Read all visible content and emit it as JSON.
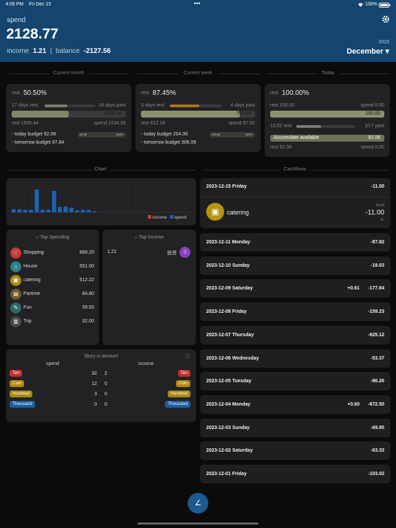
{
  "status_bar": {
    "time": "4:08 PM",
    "date": "Fri Dec 15",
    "dots": "•••",
    "battery": "100%"
  },
  "header": {
    "label": "spend",
    "amount": "2128.77",
    "income_label": "income",
    "income_value": "1.21",
    "sep": "|",
    "balance_label": "balance",
    "balance_value": "-2127.56",
    "year": "2023",
    "month": "December ▾",
    "settings_icon": "gear-icon"
  },
  "sections": {
    "month": "Current month",
    "week": "Current week",
    "today": "Today",
    "chart": "Chart",
    "cashflows": "Cashflows"
  },
  "month_card": {
    "rest_label": "rest",
    "rest_pct": "50.50%",
    "days_rest": "17 days rest",
    "days_past": "14 days past",
    "bar_value": "3100.00",
    "bar_fill": 0.5,
    "days_fill": 0.45,
    "rest_amount": "rest 1565.44",
    "spend_amount": "spend 1534.56",
    "today_budget": "- today budget 92.08",
    "tomorrow_budget": "- tomorrow budget 97.84",
    "pill_left": "92.08",
    "pill_right": "100%"
  },
  "week_card": {
    "rest_label": "rest",
    "rest_pct": "87.45%",
    "days_rest": "3 days rest",
    "days_past": "4 days past",
    "bar_value": "700.00",
    "bar_fill": 0.87,
    "days_fill": 0.57,
    "rest_amount": "rest 612.18",
    "spend_amount": "spend 87.82",
    "today_budget": "- today budget 204.06",
    "tomorrow_budget": "- tomorrow budget 306.09",
    "pill_left": "204.06",
    "pill_right": "100%"
  },
  "today_card": {
    "rest_label": "rest",
    "rest_pct": "100.00%",
    "rest_amount": "rest 100.00",
    "spend_amount": "spend 0.00",
    "bar_value": "100.00",
    "bar_fill": 1.0,
    "time_rest": "13:52 rest",
    "time_past": "10:7 past",
    "time_fill": 0.42,
    "accumulate_label": "Accumulate available",
    "accumulate_value": "92.08",
    "rest2": "rest 92.08",
    "spend2": "spend 0.00"
  },
  "chart_data": {
    "type": "bar",
    "series": [
      {
        "name": "income",
        "color": "#d23a3a",
        "values": [
          0,
          0,
          0,
          0,
          0,
          0,
          0,
          0,
          0,
          0,
          0,
          0,
          0,
          0,
          1.21,
          0,
          0,
          0,
          0,
          0,
          0,
          0,
          0,
          0,
          0,
          0,
          0,
          0,
          0,
          0,
          0
        ]
      },
      {
        "name": "spend",
        "color": "#1b64b8",
        "values": [
          12,
          12,
          10,
          10,
          85,
          10,
          10,
          80,
          20,
          22,
          18,
          8,
          10,
          9,
          3,
          0,
          0,
          0,
          0,
          0,
          0,
          0,
          0,
          0,
          0,
          0,
          0,
          0,
          0,
          0,
          0
        ]
      }
    ],
    "ylim": [
      0,
      100
    ],
    "legend": "bottom-right"
  },
  "top_spending": {
    "title": "Top Spending",
    "items": [
      {
        "name": "Shopping",
        "value": "889.20",
        "icon": "cart-icon",
        "color": "#d83030",
        "glyph": "🛒"
      },
      {
        "name": "House",
        "value": "551.00",
        "icon": "house-icon",
        "color": "#2f7f86",
        "glyph": "⌂"
      },
      {
        "name": "catering",
        "value": "512.22",
        "icon": "catering-icon",
        "color": "#b08c10",
        "glyph": "▣"
      },
      {
        "name": "Partime",
        "value": "84.80",
        "icon": "partime-icon",
        "color": "#6f5a2b",
        "glyph": "▤"
      },
      {
        "name": "Fun",
        "value": "59.55",
        "icon": "fun-icon",
        "color": "#2f6a6a",
        "glyph": "✎"
      },
      {
        "name": "Trip",
        "value": "32.00",
        "icon": "trip-icon",
        "color": "#4a4a4c",
        "glyph": "▥"
      }
    ]
  },
  "top_income": {
    "title": "Top Income",
    "items": [
      {
        "name": "投资",
        "value": "1.21",
        "icon": "invest-icon",
        "color": "#8a3fc2",
        "glyph": "▯"
      }
    ]
  },
  "story": {
    "title": "Story in amount",
    "spend_header": "spend",
    "income_header": "income",
    "rows": [
      {
        "label": "Ten",
        "color": "#c23030",
        "spend": "32",
        "income": "2"
      },
      {
        "label": "Coin",
        "color": "#b8860b",
        "spend": "12",
        "income": "0"
      },
      {
        "label": "Hundred",
        "color": "#a88a14",
        "spend": "3",
        "income": "0"
      },
      {
        "label": "Thousand",
        "color": "#1c5fa0",
        "spend": "0",
        "income": "0"
      }
    ]
  },
  "cashflows": {
    "first": {
      "date": "2023-12-15  Friday",
      "total": "-11.00",
      "category": "catering",
      "time": "16:08",
      "amount": "-11.00",
      "icon": "catering-icon",
      "extra": "%"
    },
    "days": [
      {
        "date": "2023-12-11  Monday",
        "income": "",
        "total": "-87.82"
      },
      {
        "date": "2023-12-10  Sunday",
        "income": "",
        "total": "-19.63"
      },
      {
        "date": "2023-12-09  Saturday",
        "income": "+0.61",
        "total": "-177.64"
      },
      {
        "date": "2023-12-08  Friday",
        "income": "",
        "total": "-159.23"
      },
      {
        "date": "2023-12-07  Thursday",
        "income": "",
        "total": "-625.12"
      },
      {
        "date": "2023-12-06  Wednesday",
        "income": "",
        "total": "-53.37"
      },
      {
        "date": "2023-12-05  Tuesday",
        "income": "",
        "total": "-86.26"
      },
      {
        "date": "2023-12-04  Monday",
        "income": "+0.60",
        "total": "-672.50"
      },
      {
        "date": "2023-12-03  Sunday",
        "income": "",
        "total": "-69.85"
      },
      {
        "date": "2023-12-02  Saturday",
        "income": "",
        "total": "-63.33"
      },
      {
        "date": "2023-12-01  Friday",
        "income": "",
        "total": "-103.02"
      }
    ]
  },
  "fab": {
    "icon": "pencil-icon",
    "glyph": "∠"
  }
}
